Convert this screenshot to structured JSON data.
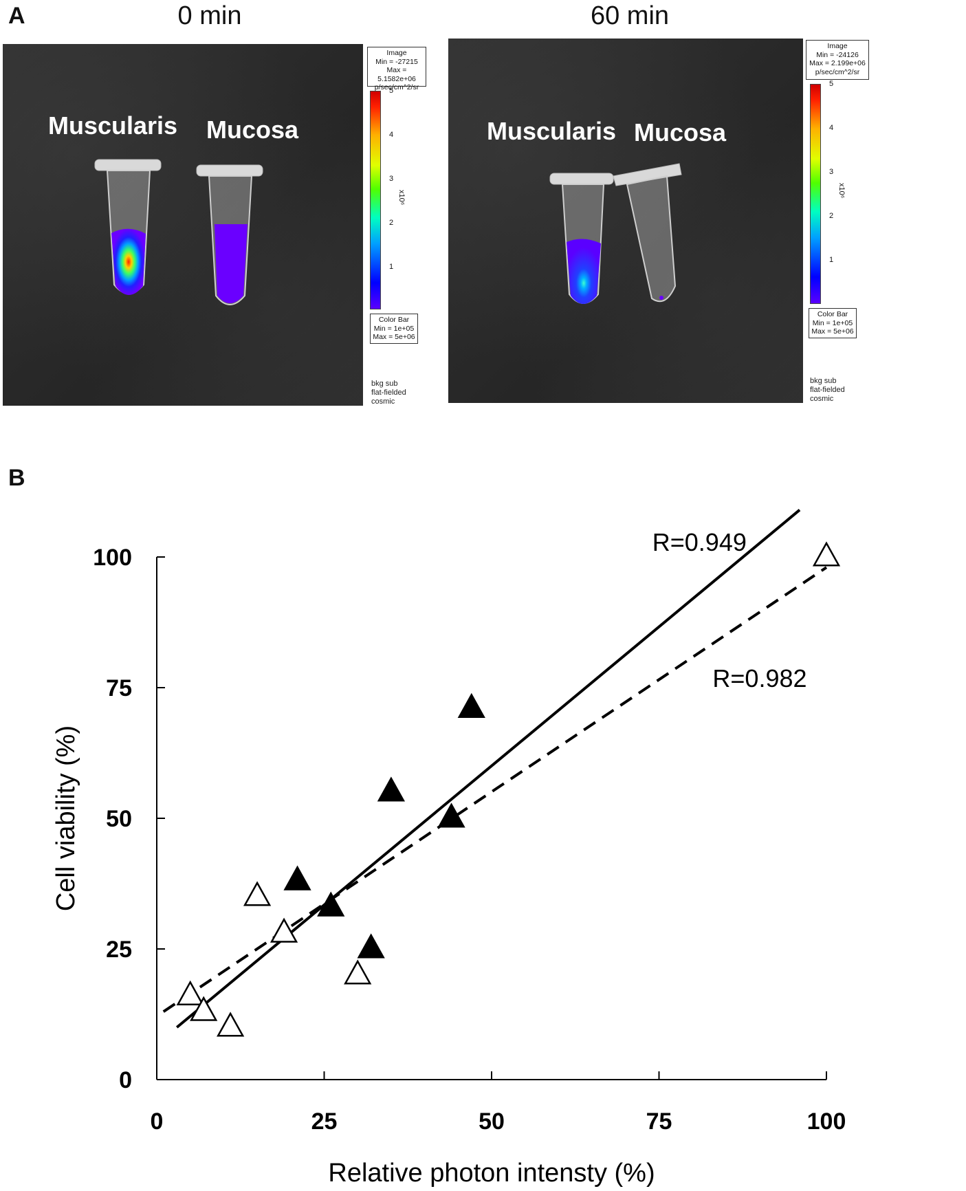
{
  "panels": {
    "a_letter": "A",
    "b_letter": "B"
  },
  "images": [
    {
      "title": "0 min",
      "labels": [
        "Muscularis",
        "Mucosa"
      ],
      "image_box": [
        "Image",
        "Min = -27215",
        "Max = 5.1582e+06",
        "p/sec/cm^2/sr"
      ],
      "colorbar_ticks": [
        "5",
        "4",
        "3",
        "2",
        "1"
      ],
      "colorbar_unit": "x10⁶",
      "colorbar_box": [
        "Color Bar",
        "Min = 1e+05",
        "Max = 5e+06"
      ],
      "footer": [
        "bkg sub",
        "flat-fielded",
        "cosmic"
      ]
    },
    {
      "title": "60 min",
      "labels": [
        "Muscularis",
        "Mucosa"
      ],
      "image_box": [
        "Image",
        "Min = -24126",
        "Max = 2.199e+06",
        "p/sec/cm^2/sr"
      ],
      "colorbar_ticks": [
        "5",
        "4",
        "3",
        "2",
        "1"
      ],
      "colorbar_unit": "x10⁶",
      "colorbar_box": [
        "Color Bar",
        "Min = 1e+05",
        "Max = 5e+06"
      ],
      "footer": [
        "bkg sub",
        "flat-fielded",
        "cosmic"
      ]
    }
  ],
  "chart_data": {
    "type": "scatter",
    "xlabel": "Relative photon intensty (%)",
    "ylabel": "Cell viability (%)",
    "xlim": [
      0,
      100
    ],
    "ylim": [
      0,
      100
    ],
    "xticks": [
      0,
      25,
      50,
      75,
      100
    ],
    "yticks": [
      0,
      25,
      50,
      75,
      100
    ],
    "grid": false,
    "series": [
      {
        "marker": "filled-triangle",
        "points": [
          [
            21,
            38
          ],
          [
            26,
            33
          ],
          [
            32,
            25
          ],
          [
            35,
            55
          ],
          [
            44,
            50
          ],
          [
            47,
            71
          ]
        ],
        "fit": {
          "style": "solid",
          "from": [
            3,
            10
          ],
          "to": [
            96,
            109
          ],
          "label": "R=0.949"
        }
      },
      {
        "marker": "open-triangle",
        "points": [
          [
            5,
            16
          ],
          [
            7,
            13
          ],
          [
            11,
            10
          ],
          [
            15,
            35
          ],
          [
            19,
            28
          ],
          [
            30,
            20
          ],
          [
            100,
            100
          ]
        ],
        "fit": {
          "style": "dashed",
          "from": [
            1,
            13
          ],
          "to": [
            100,
            98
          ],
          "label": "R=0.982"
        }
      }
    ],
    "colors": {
      "ink": "#000000",
      "open_fill": "#ffffff"
    }
  }
}
